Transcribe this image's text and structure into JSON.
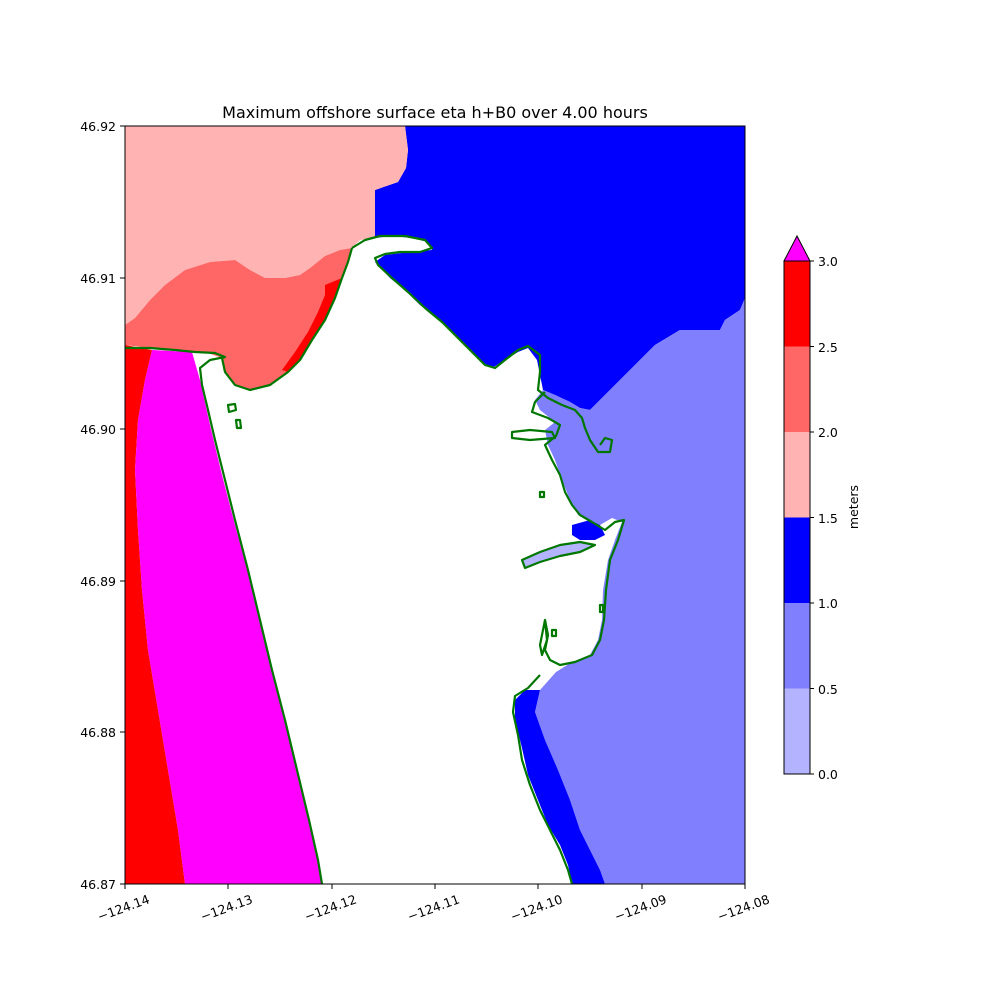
{
  "title": "Maximum offshore surface eta h+B0 over 4.00 hours",
  "x_ticks": [
    "−124.14",
    "−124.13",
    "−124.12",
    "−124.11",
    "−124.10",
    "−124.09",
    "−124.08"
  ],
  "y_ticks": [
    "46.92",
    "46.91",
    "46.90",
    "46.89",
    "46.88",
    "46.87"
  ],
  "colorbar": {
    "label": "meters",
    "ticks": [
      "3.0",
      "2.5",
      "2.0",
      "1.5",
      "1.0",
      "0.5",
      "0.0"
    ],
    "bins": [
      {
        "range": [
          0.0,
          0.5
        ],
        "color": "#b3b3ff"
      },
      {
        "range": [
          0.5,
          1.0
        ],
        "color": "#8080ff"
      },
      {
        "range": [
          1.0,
          1.5
        ],
        "color": "#0000ff"
      },
      {
        "range": [
          1.5,
          2.0
        ],
        "color": "#ffb3b3"
      },
      {
        "range": [
          2.0,
          2.5
        ],
        "color": "#ff6666"
      },
      {
        "range": [
          2.5,
          3.0
        ],
        "color": "#ff0000"
      }
    ],
    "over_color": "#ff00ff"
  },
  "map": {
    "lon_range": [
      -124.14,
      -124.08
    ],
    "lat_range": [
      46.87,
      46.92
    ],
    "shoreline_color": "#007700"
  }
}
